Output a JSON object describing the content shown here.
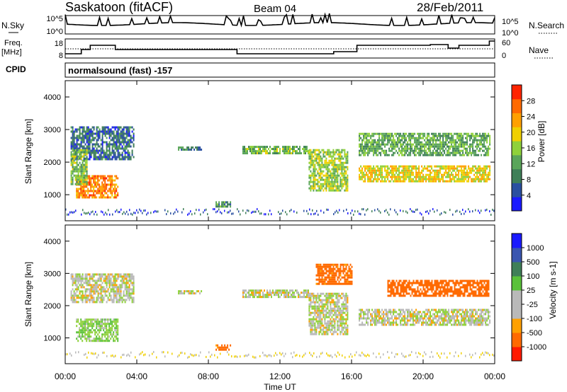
{
  "header": {
    "station": "Saskatoon (fitACF)",
    "beam": "Beam 04",
    "date": "28/Feb/2011"
  },
  "status_panels": {
    "nsky_label": "N.Sky",
    "nsky_ticks": [
      "10^5",
      "10^0"
    ],
    "nsearch_label": "N.Search",
    "nsearch_ticks": [
      "10^5",
      "10^0"
    ],
    "freq_label_line1": "Freq.",
    "freq_label_line2": "[MHz]",
    "freq_ticks": [
      "18",
      "8"
    ],
    "nave_label": "Nave",
    "nave_ticks": [
      "60",
      "0"
    ],
    "cpid_label": "CPID",
    "cpid_value": "normalsound (fast) -157"
  },
  "colors": {
    "power_scale": [
      "#1a1aff",
      "#2a4fa0",
      "#3f7f58",
      "#5aa55a",
      "#8fd13a",
      "#f0d000",
      "#ffa000",
      "#ff6a00",
      "#ff2400"
    ],
    "velocity_scale": [
      "#1a1aff",
      "#3a56b0",
      "#3f7f58",
      "#5ac13a",
      "#b9b9b9",
      "#b9b9b9",
      "#ffa000",
      "#ff6a00",
      "#ff1a00"
    ]
  },
  "chart_data": [
    {
      "type": "heatmap",
      "name": "power",
      "ylabel": "Slant Range [km]",
      "ylim": [
        200,
        4500
      ],
      "yticks": [
        "1000",
        "2000",
        "3000",
        "4000"
      ],
      "xlim_hours": [
        0,
        24
      ],
      "colorbar_label": "Power [dB]",
      "colorbar_ticks": [
        "28",
        "24",
        "20",
        "16",
        "12",
        "8",
        "4"
      ],
      "regions": [
        {
          "t0": 0.3,
          "t1": 3.8,
          "r0": 2100,
          "r1": 3100,
          "dB": 6
        },
        {
          "t0": 0.6,
          "t1": 2.9,
          "r0": 900,
          "r1": 1600,
          "dB": 26
        },
        {
          "t0": 0.3,
          "t1": 1.2,
          "r0": 1300,
          "r1": 2400,
          "dB": 14
        },
        {
          "t0": 6.3,
          "t1": 7.6,
          "r0": 2350,
          "r1": 2480,
          "dB": 8
        },
        {
          "t0": 8.4,
          "t1": 9.2,
          "r0": 650,
          "r1": 800,
          "dB": 10
        },
        {
          "t0": 9.9,
          "t1": 13.6,
          "r0": 2250,
          "r1": 2500,
          "dB": 14
        },
        {
          "t0": 13.6,
          "t1": 15.8,
          "r0": 1100,
          "r1": 2400,
          "dB": 16
        },
        {
          "t0": 16.4,
          "t1": 23.7,
          "r0": 1400,
          "r1": 1900,
          "dB": 20
        },
        {
          "t0": 16.4,
          "t1": 23.7,
          "r0": 2200,
          "r1": 2900,
          "dB": 12
        }
      ]
    },
    {
      "type": "heatmap",
      "name": "velocity",
      "ylabel": "Slant Range [km]",
      "ylim": [
        200,
        4500
      ],
      "yticks": [
        "1000",
        "2000",
        "3000",
        "4000"
      ],
      "xlim_hours": [
        0,
        24
      ],
      "xticks": [
        "00:00",
        "04:00",
        "08:00",
        "12:00",
        "16:00",
        "20:00",
        "00:00"
      ],
      "xlabel": "Time UT",
      "colorbar_label": "Velocity [m s-1]",
      "colorbar_ticks": [
        "1000",
        "500",
        "100",
        "25",
        "-25",
        "-100",
        "-500",
        "-1000"
      ],
      "regions": [
        {
          "t0": 0.3,
          "t1": 3.8,
          "r0": 2100,
          "r1": 3000,
          "v": 0
        },
        {
          "t0": 0.6,
          "t1": 2.9,
          "r0": 900,
          "r1": 1600,
          "v": 60
        },
        {
          "t0": 6.3,
          "t1": 7.6,
          "r0": 2350,
          "r1": 2480,
          "v": 0
        },
        {
          "t0": 8.4,
          "t1": 9.2,
          "r0": 650,
          "r1": 800,
          "v": -200
        },
        {
          "t0": 9.9,
          "t1": 13.6,
          "r0": 2250,
          "r1": 2500,
          "v": 0
        },
        {
          "t0": 13.6,
          "t1": 15.8,
          "r0": 1100,
          "r1": 2400,
          "v": 0
        },
        {
          "t0": 16.4,
          "t1": 23.7,
          "r0": 1400,
          "r1": 1900,
          "v": 0
        },
        {
          "t0": 18.0,
          "t1": 23.7,
          "r0": 2300,
          "r1": 2800,
          "v": -300
        },
        {
          "t0": 14.0,
          "t1": 16.0,
          "r0": 2700,
          "r1": 3300,
          "v": -200
        }
      ]
    }
  ]
}
